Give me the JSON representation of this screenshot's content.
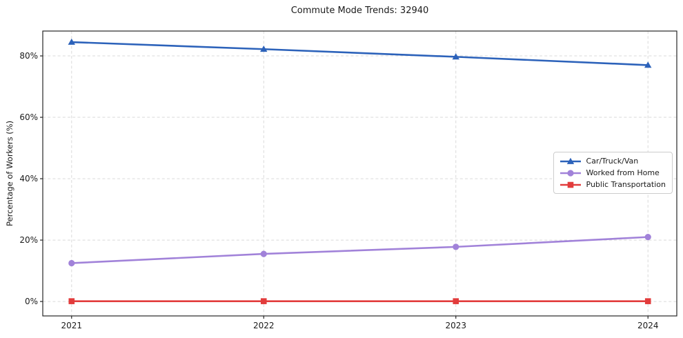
{
  "figure": {
    "title": "Commute Mode Trends: 32940",
    "ylabel": "Percentage of Workers (%)"
  },
  "colors": {
    "background": "#ffffff",
    "grid": "#d9d9d9",
    "spine": "#262626",
    "tick_text": "#1a1a1a",
    "legend_border": "#cccccc",
    "car_blue": "#2c62ba",
    "wfh_purple": "#a182d9",
    "transit_red": "#e23c3c"
  },
  "chart_data": {
    "type": "line",
    "title": "Commute Mode Trends: 32940",
    "xlabel": "",
    "ylabel": "Percentage of Workers (%)",
    "x": [
      2021,
      2022,
      2023,
      2024
    ],
    "x_tick_labels": [
      "2021",
      "2022",
      "2023",
      "2024"
    ],
    "yticks": [
      0,
      20,
      40,
      60,
      80
    ],
    "y_tick_labels": [
      "0%",
      "20%",
      "40%",
      "60%",
      "80%"
    ],
    "xlim": [
      2020.85,
      2024.15
    ],
    "ylim": [
      -4.7,
      88.1
    ],
    "grid": true,
    "grid_style": "dashed",
    "legend_position": "center-right",
    "series": [
      {
        "name": "Car/Truck/Van",
        "color": "#2c62ba",
        "marker": "triangle",
        "values": [
          84.5,
          82.2,
          79.7,
          77.0
        ]
      },
      {
        "name": "Worked from Home",
        "color": "#a182d9",
        "marker": "circle",
        "values": [
          12.5,
          15.5,
          17.8,
          21.0
        ]
      },
      {
        "name": "Public Transportation",
        "color": "#e23c3c",
        "marker": "square",
        "values": [
          0.1,
          0.1,
          0.1,
          0.1
        ]
      }
    ]
  }
}
